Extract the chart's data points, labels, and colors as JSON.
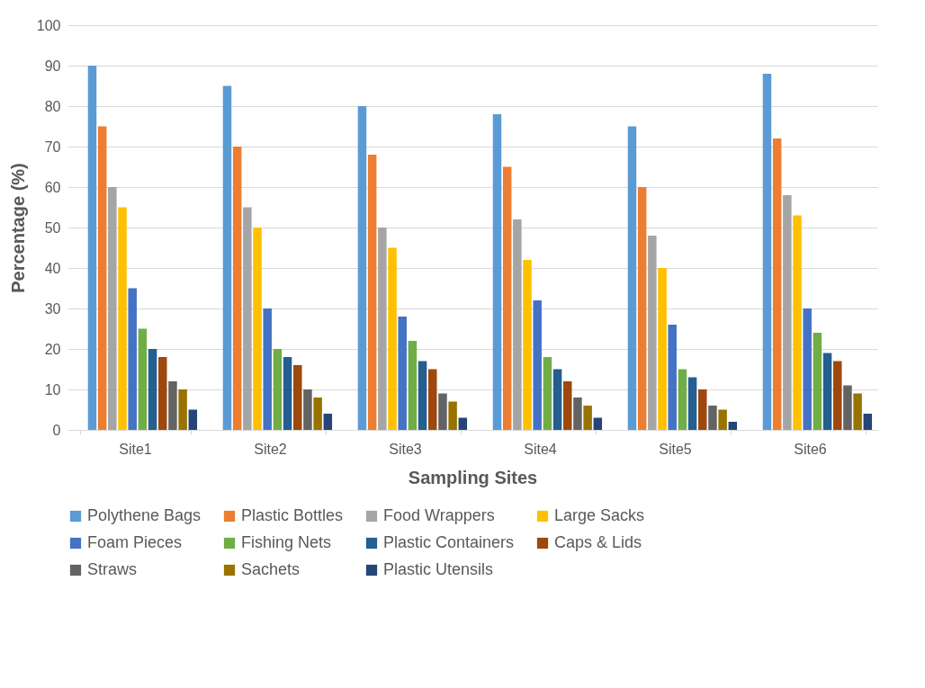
{
  "chart_data": {
    "type": "bar",
    "xlabel": "Sampling Sites",
    "ylabel": "Percentage (%)",
    "categories": [
      "Site1",
      "Site2",
      "Site3",
      "Site4",
      "Site5",
      "Site6"
    ],
    "series": [
      {
        "name": "Polythene Bags",
        "color": "#5b9bd5",
        "values": [
          90,
          85,
          80,
          78,
          75,
          88
        ]
      },
      {
        "name": "Plastic Bottles",
        "color": "#ed7d31",
        "values": [
          75,
          70,
          68,
          65,
          60,
          72
        ]
      },
      {
        "name": "Food Wrappers",
        "color": "#a5a5a5",
        "values": [
          60,
          55,
          50,
          52,
          48,
          58
        ]
      },
      {
        "name": "Large Sacks",
        "color": "#ffc000",
        "values": [
          55,
          50,
          45,
          42,
          40,
          53
        ]
      },
      {
        "name": "Foam Pieces",
        "color": "#4472c4",
        "values": [
          35,
          30,
          28,
          32,
          26,
          30
        ]
      },
      {
        "name": "Fishing Nets",
        "color": "#70ad47",
        "values": [
          25,
          20,
          22,
          18,
          15,
          24
        ]
      },
      {
        "name": "Plastic Containers",
        "color": "#255e91",
        "values": [
          20,
          18,
          17,
          15,
          13,
          19
        ]
      },
      {
        "name": "Caps & Lids",
        "color": "#9e480e",
        "values": [
          18,
          16,
          15,
          12,
          10,
          17
        ]
      },
      {
        "name": "Straws",
        "color": "#636363",
        "values": [
          12,
          10,
          9,
          8,
          6,
          11
        ]
      },
      {
        "name": "Sachets",
        "color": "#997300",
        "values": [
          10,
          8,
          7,
          6,
          5,
          9
        ]
      },
      {
        "name": "Plastic Utensils",
        "color": "#264478",
        "values": [
          5,
          4,
          3,
          3,
          2,
          4
        ]
      }
    ],
    "ylim": [
      0,
      100
    ],
    "yticks": [
      0,
      10,
      20,
      30,
      40,
      50,
      60,
      70,
      80,
      90,
      100
    ],
    "grid": "y",
    "legend": "bottom"
  }
}
